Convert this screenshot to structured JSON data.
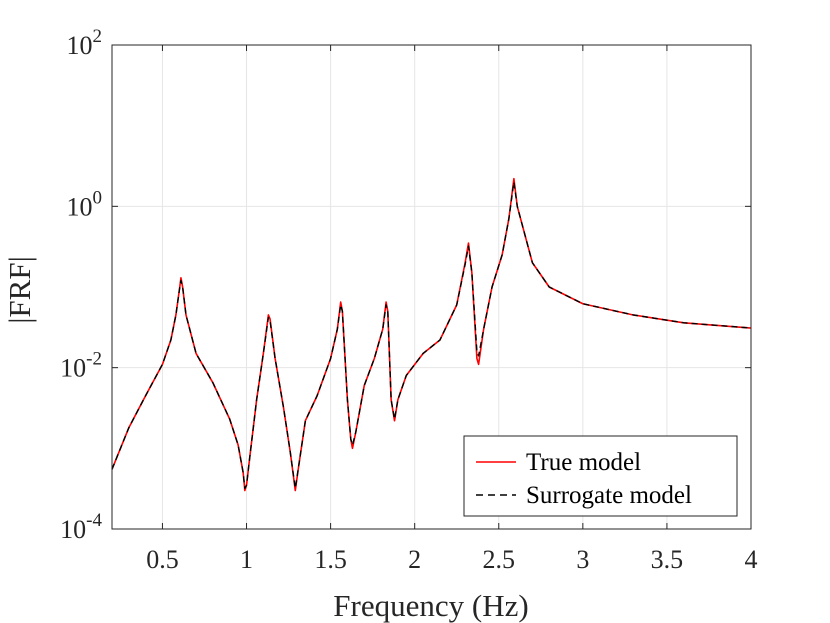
{
  "chart_data": {
    "type": "line",
    "xlabel": "Frequency (Hz)",
    "ylabel": "|FRF|",
    "xscale": "linear",
    "yscale": "log",
    "xlim": [
      0.2,
      4
    ],
    "ylim": [
      0.0001,
      100
    ],
    "grid": true,
    "legend_position": "bottom-right",
    "x_ticks": [
      {
        "value": 0.5,
        "label": "0.5"
      },
      {
        "value": 1,
        "label": "1"
      },
      {
        "value": 1.5,
        "label": "1.5"
      },
      {
        "value": 2,
        "label": "2"
      },
      {
        "value": 2.5,
        "label": "2.5"
      },
      {
        "value": 3,
        "label": "3"
      },
      {
        "value": 3.5,
        "label": "3.5"
      },
      {
        "value": 4,
        "label": "4"
      }
    ],
    "y_ticks": [
      {
        "value": 0.0001,
        "base": "10",
        "exp": "-4"
      },
      {
        "value": 0.01,
        "base": "10",
        "exp": "-2"
      },
      {
        "value": 1,
        "base": "10",
        "exp": "0"
      },
      {
        "value": 100,
        "base": "10",
        "exp": "2"
      }
    ],
    "series": [
      {
        "name": "True model",
        "color": "#ff0000",
        "style": "solid",
        "points": [
          [
            0.2,
            0.00055
          ],
          [
            0.3,
            0.0018
          ],
          [
            0.4,
            0.0045
          ],
          [
            0.5,
            0.011
          ],
          [
            0.55,
            0.022
          ],
          [
            0.58,
            0.045
          ],
          [
            0.6,
            0.09
          ],
          [
            0.61,
            0.13
          ],
          [
            0.62,
            0.1
          ],
          [
            0.64,
            0.045
          ],
          [
            0.7,
            0.015
          ],
          [
            0.8,
            0.0065
          ],
          [
            0.9,
            0.0023
          ],
          [
            0.95,
            0.0011
          ],
          [
            0.98,
            0.0005
          ],
          [
            0.99,
            0.0003
          ],
          [
            1.0,
            0.00035
          ],
          [
            1.02,
            0.0008
          ],
          [
            1.06,
            0.004
          ],
          [
            1.1,
            0.015
          ],
          [
            1.13,
            0.045
          ],
          [
            1.14,
            0.04
          ],
          [
            1.17,
            0.013
          ],
          [
            1.22,
            0.0032
          ],
          [
            1.26,
            0.0009
          ],
          [
            1.29,
            0.0003
          ],
          [
            1.31,
            0.0006
          ],
          [
            1.35,
            0.0022
          ],
          [
            1.42,
            0.0045
          ],
          [
            1.5,
            0.013
          ],
          [
            1.54,
            0.03
          ],
          [
            1.56,
            0.065
          ],
          [
            1.57,
            0.05
          ],
          [
            1.6,
            0.004
          ],
          [
            1.62,
            0.0013
          ],
          [
            1.63,
            0.001
          ],
          [
            1.65,
            0.0016
          ],
          [
            1.7,
            0.006
          ],
          [
            1.76,
            0.013
          ],
          [
            1.81,
            0.03
          ],
          [
            1.83,
            0.065
          ],
          [
            1.84,
            0.05
          ],
          [
            1.86,
            0.004
          ],
          [
            1.88,
            0.0022
          ],
          [
            1.9,
            0.004
          ],
          [
            1.95,
            0.008
          ],
          [
            2.05,
            0.015
          ],
          [
            2.15,
            0.022
          ],
          [
            2.25,
            0.06
          ],
          [
            2.3,
            0.2
          ],
          [
            2.32,
            0.35
          ],
          [
            2.34,
            0.15
          ],
          [
            2.37,
            0.013
          ],
          [
            2.38,
            0.011
          ],
          [
            2.41,
            0.03
          ],
          [
            2.46,
            0.1
          ],
          [
            2.52,
            0.25
          ],
          [
            2.56,
            0.7
          ],
          [
            2.59,
            2.2
          ],
          [
            2.61,
            1.0
          ],
          [
            2.7,
            0.2
          ],
          [
            2.8,
            0.1
          ],
          [
            3.0,
            0.062
          ],
          [
            3.3,
            0.045
          ],
          [
            3.6,
            0.036
          ],
          [
            4.0,
            0.031
          ]
        ]
      },
      {
        "name": "Surrogate model",
        "color": "#000000",
        "style": "dashed",
        "points": [
          [
            0.2,
            0.00055
          ],
          [
            0.3,
            0.0018
          ],
          [
            0.4,
            0.0045
          ],
          [
            0.5,
            0.011
          ],
          [
            0.55,
            0.022
          ],
          [
            0.58,
            0.045
          ],
          [
            0.6,
            0.09
          ],
          [
            0.61,
            0.12
          ],
          [
            0.62,
            0.1
          ],
          [
            0.64,
            0.045
          ],
          [
            0.7,
            0.015
          ],
          [
            0.8,
            0.0065
          ],
          [
            0.9,
            0.0023
          ],
          [
            0.95,
            0.0011
          ],
          [
            0.98,
            0.0005
          ],
          [
            0.99,
            0.00032
          ],
          [
            1.0,
            0.00035
          ],
          [
            1.02,
            0.0008
          ],
          [
            1.06,
            0.004
          ],
          [
            1.1,
            0.015
          ],
          [
            1.13,
            0.042
          ],
          [
            1.14,
            0.038
          ],
          [
            1.17,
            0.013
          ],
          [
            1.22,
            0.0032
          ],
          [
            1.26,
            0.0009
          ],
          [
            1.29,
            0.00032
          ],
          [
            1.31,
            0.0006
          ],
          [
            1.35,
            0.0022
          ],
          [
            1.42,
            0.0045
          ],
          [
            1.5,
            0.013
          ],
          [
            1.54,
            0.03
          ],
          [
            1.56,
            0.06
          ],
          [
            1.57,
            0.05
          ],
          [
            1.6,
            0.004
          ],
          [
            1.62,
            0.0013
          ],
          [
            1.63,
            0.0011
          ],
          [
            1.65,
            0.0016
          ],
          [
            1.7,
            0.006
          ],
          [
            1.76,
            0.013
          ],
          [
            1.81,
            0.03
          ],
          [
            1.83,
            0.06
          ],
          [
            1.84,
            0.05
          ],
          [
            1.86,
            0.004
          ],
          [
            1.88,
            0.0023
          ],
          [
            1.9,
            0.004
          ],
          [
            1.95,
            0.008
          ],
          [
            2.05,
            0.015
          ],
          [
            2.15,
            0.022
          ],
          [
            2.25,
            0.06
          ],
          [
            2.3,
            0.19
          ],
          [
            2.32,
            0.32
          ],
          [
            2.34,
            0.15
          ],
          [
            2.37,
            0.016
          ],
          [
            2.38,
            0.014
          ],
          [
            2.41,
            0.03
          ],
          [
            2.46,
            0.1
          ],
          [
            2.52,
            0.25
          ],
          [
            2.56,
            0.7
          ],
          [
            2.59,
            2.0
          ],
          [
            2.61,
            1.0
          ],
          [
            2.7,
            0.2
          ],
          [
            2.8,
            0.1
          ],
          [
            3.0,
            0.062
          ],
          [
            3.3,
            0.045
          ],
          [
            3.6,
            0.036
          ],
          [
            4.0,
            0.031
          ]
        ]
      }
    ]
  }
}
